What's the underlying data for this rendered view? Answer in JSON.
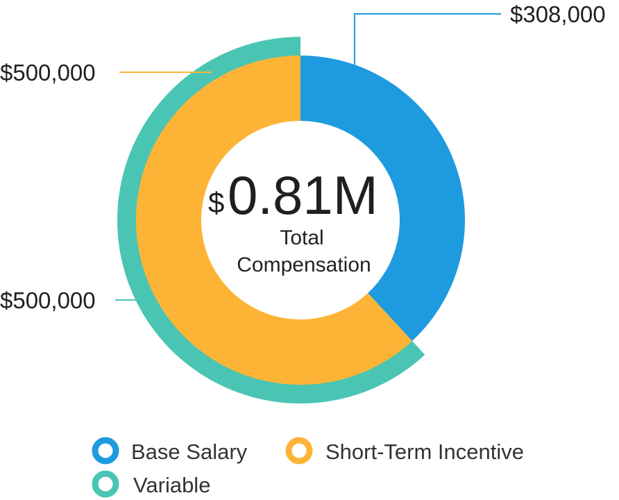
{
  "chart_data": {
    "type": "pie",
    "center_value": {
      "currency": "$",
      "value": "0.81M"
    },
    "center_label": [
      "Total",
      "Compensation"
    ],
    "slices": [
      {
        "name": "Base Salary",
        "value": 308000,
        "label": "$308,000",
        "color": "#1e9ade"
      },
      {
        "name": "Short-Term Incentive",
        "value": 500000,
        "label": "$500,000",
        "color": "#fdb436"
      }
    ],
    "outer_ring": [
      {
        "name": "Variable",
        "value": 500000,
        "label": "$500,000",
        "color": "#4ac5b4",
        "spans": "Short-Term Incentive"
      }
    ],
    "legend": [
      {
        "label": "Base Salary",
        "color": "#1e9ade"
      },
      {
        "label": "Short-Term Incentive",
        "color": "#fdb436"
      },
      {
        "label": "Variable",
        "color": "#4ac5b4"
      }
    ],
    "legend_position": "bottom"
  }
}
